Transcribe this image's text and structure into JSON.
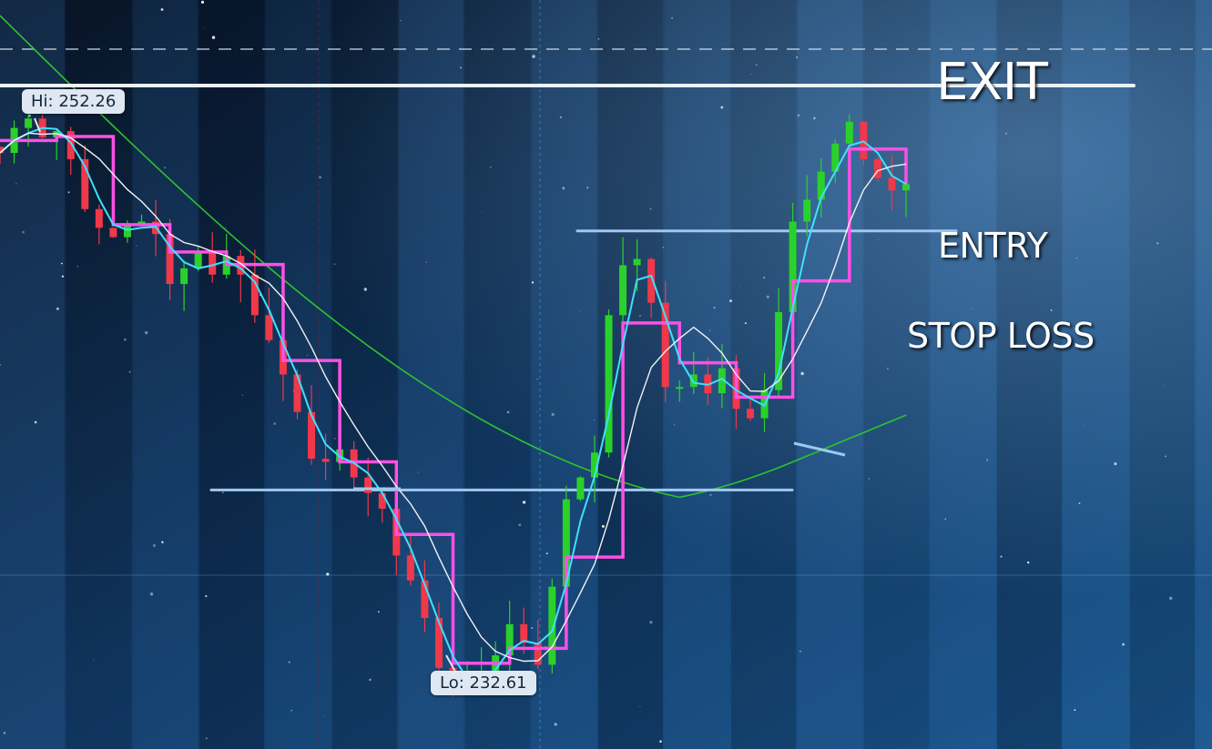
{
  "labels": {
    "exit": "EXIT",
    "entry": "ENTRY",
    "stop_loss": "STOP LOSS",
    "hi": "Hi: 252.26",
    "lo": "Lo: 232.61"
  },
  "chart_data": {
    "type": "candlestick",
    "title": "",
    "xlabel": "",
    "ylabel": "",
    "ylim": [
      231,
      255
    ],
    "high": 252.26,
    "low": 232.61,
    "colors": {
      "up": "#2bd12b",
      "down": "#f0384a",
      "fast_ma": "#3fe0ff",
      "slow_ma": "#f2f2f2",
      "step_line": "#ff4fe6",
      "long_ma": "#2ec32e",
      "level": "#9fc8f0",
      "exit_line": "#eaf2fb"
    },
    "levels": [
      {
        "name": "EXIT",
        "value": 252.26
      },
      {
        "name": "ENTRY",
        "value": 247.6
      },
      {
        "name": "STOP LOSS",
        "value": 239.3
      }
    ],
    "close": [
      250.1,
      250.9,
      251.2,
      250.6,
      250.8,
      249.9,
      248.3,
      247.7,
      247.4,
      247.8,
      247.9,
      247.5,
      245.9,
      246.4,
      246.9,
      246.2,
      246.8,
      246.2,
      244.9,
      244.1,
      243.0,
      241.8,
      240.3,
      240.2,
      240.6,
      239.7,
      239.2,
      238.7,
      237.2,
      236.4,
      235.2,
      233.6,
      233.1,
      233.1,
      233.5,
      234.0,
      235.0,
      234.4,
      233.7,
      236.2,
      239.0,
      239.7,
      240.5,
      244.9,
      246.5,
      246.7,
      245.3,
      242.6,
      242.6,
      243.0,
      242.4,
      243.2,
      241.9,
      241.6,
      242.5,
      245.0,
      247.9,
      248.6,
      249.5,
      250.4,
      251.1,
      249.9,
      249.3,
      248.9,
      249.1
    ]
  }
}
